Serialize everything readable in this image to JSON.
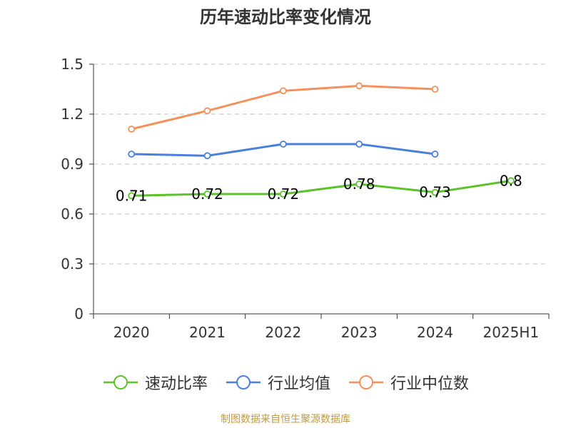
{
  "chart_data": {
    "type": "line",
    "title": "历年速动比率变化情况",
    "categories": [
      "2020",
      "2021",
      "2022",
      "2023",
      "2024",
      "2025H1"
    ],
    "ylim": [
      0,
      1.5
    ],
    "yticks": [
      "0",
      "0.3",
      "0.6",
      "0.9",
      "1.2",
      "1.5"
    ],
    "grid": true,
    "legend_position": "bottom",
    "series": [
      {
        "name": "速动比率",
        "color": "#5bc22a",
        "values": [
          0.71,
          0.72,
          0.72,
          0.78,
          0.73,
          0.8
        ],
        "data_labels": [
          "0.71",
          "0.72",
          "0.72",
          "0.78",
          "0.73",
          "0.8"
        ]
      },
      {
        "name": "行业均值",
        "color": "#4a7fde",
        "values": [
          0.96,
          0.95,
          1.02,
          1.02,
          0.96,
          null
        ]
      },
      {
        "name": "行业中位数",
        "color": "#f5905a",
        "values": [
          1.11,
          1.22,
          1.34,
          1.37,
          1.35,
          null
        ]
      }
    ]
  },
  "source": "制图数据来自恒生聚源数据库"
}
